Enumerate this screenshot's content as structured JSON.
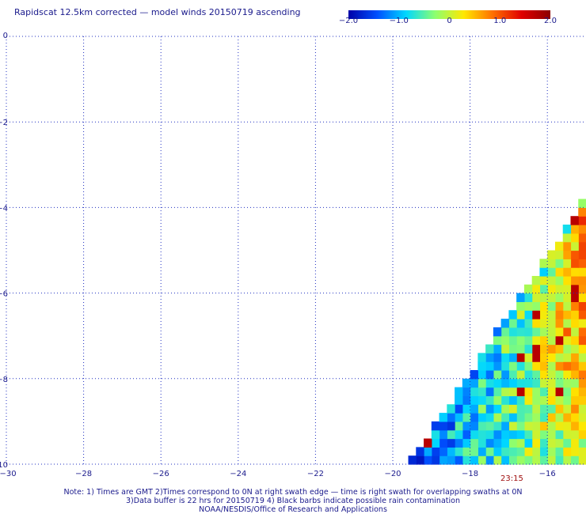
{
  "title": "Rapidscat 12.5km corrected — model winds 20150719 ascending",
  "colorbar": {
    "ticks": [
      "−2.0",
      "−1.0",
      "0",
      "1.0",
      "2.0"
    ],
    "tick_values": [
      -2,
      -1,
      0,
      1,
      2
    ],
    "colors": [
      "#0000a8",
      "#0050ff",
      "#00d8ff",
      "#8cff70",
      "#ffe800",
      "#ff7000",
      "#e00000",
      "#8c0000"
    ]
  },
  "chart_data": {
    "type": "heatmap",
    "x": {
      "range": [
        -30,
        -15
      ],
      "ticks": [
        -30,
        -28,
        -26,
        -24,
        -22,
        -20,
        -18,
        -16
      ],
      "tick_labels": [
        "−30",
        "−28",
        "−26",
        "−24",
        "−22",
        "−20",
        "−18",
        "−16"
      ]
    },
    "y": {
      "range": [
        -10,
        0
      ],
      "ticks": [
        0,
        -2,
        -4,
        -6,
        -8,
        -10
      ],
      "tick_labels": [
        "0",
        "−2",
        "−4",
        "−6",
        "−8",
        "−10"
      ]
    },
    "grid": true,
    "swath": {
      "left_edge_points": [
        [
          -19.6,
          -10
        ],
        [
          -15.2,
          -4
        ]
      ],
      "cell_size_deg": 0.2,
      "value_range": [
        -2,
        2
      ]
    },
    "value_summary": "Swath values mostly -1.5 to 1.0 (blue-cyan in lower/left, green-yellow-orange in upper/right)"
  },
  "time_label": "23:15",
  "notes": [
    "Note: 1) Times are GMT 2)Times correspond to 0N at right swath edge — time is right swath for overlapping swaths at 0N",
    "3)Data buffer is 22 hrs for 20150719 4) Black barbs indicate possible rain contamination",
    "NOAA/NESDIS/Office of Research and Applications"
  ]
}
